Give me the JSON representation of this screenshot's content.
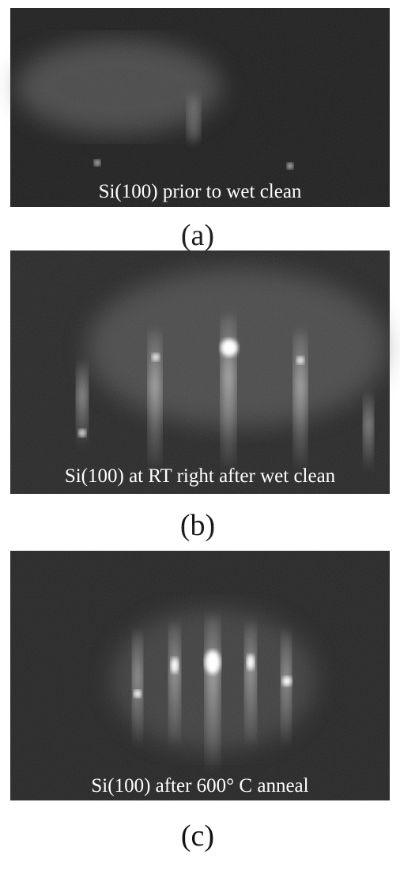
{
  "panels": [
    {
      "caption": "Si(100) prior to wet clean",
      "label": "(a)"
    },
    {
      "caption": "Si(100) at RT right after wet clean",
      "label": "(b)"
    },
    {
      "caption": "Si(100) after 600° C anneal",
      "label": "(c)"
    }
  ]
}
